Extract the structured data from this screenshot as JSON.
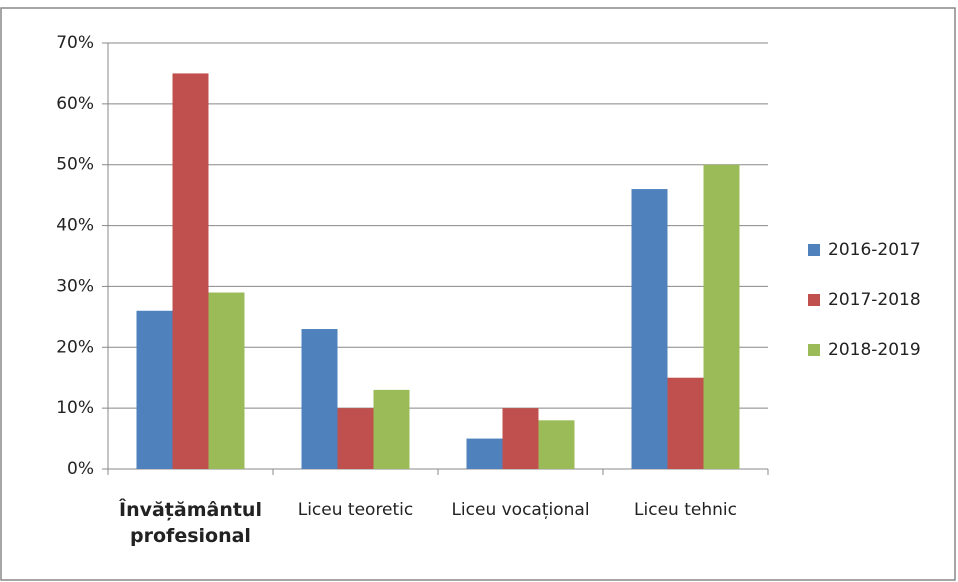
{
  "chart_data": {
    "type": "bar",
    "categories": [
      "Învățământul profesional",
      "Liceu teoretic",
      "Liceu vocațional",
      "Liceu tehnic"
    ],
    "series": [
      {
        "name": "2016-2017",
        "color": "#4f81bd",
        "values": [
          26,
          23,
          5,
          46
        ]
      },
      {
        "name": "2017-2018",
        "color": "#c0504d",
        "values": [
          65,
          10,
          10,
          15
        ]
      },
      {
        "name": "2018-2019",
        "color": "#9bbb59",
        "values": [
          29,
          13,
          8,
          50
        ]
      }
    ],
    "ylim": [
      0,
      70
    ],
    "yticks": [
      {
        "value": 0,
        "label": "0%"
      },
      {
        "value": 10,
        "label": "10%"
      },
      {
        "value": 20,
        "label": "20%"
      },
      {
        "value": 30,
        "label": "30%"
      },
      {
        "value": 40,
        "label": "40%"
      },
      {
        "value": 50,
        "label": "50%"
      },
      {
        "value": 60,
        "label": "60%"
      },
      {
        "value": 70,
        "label": "70%"
      }
    ],
    "grid": true,
    "legend": "right"
  }
}
